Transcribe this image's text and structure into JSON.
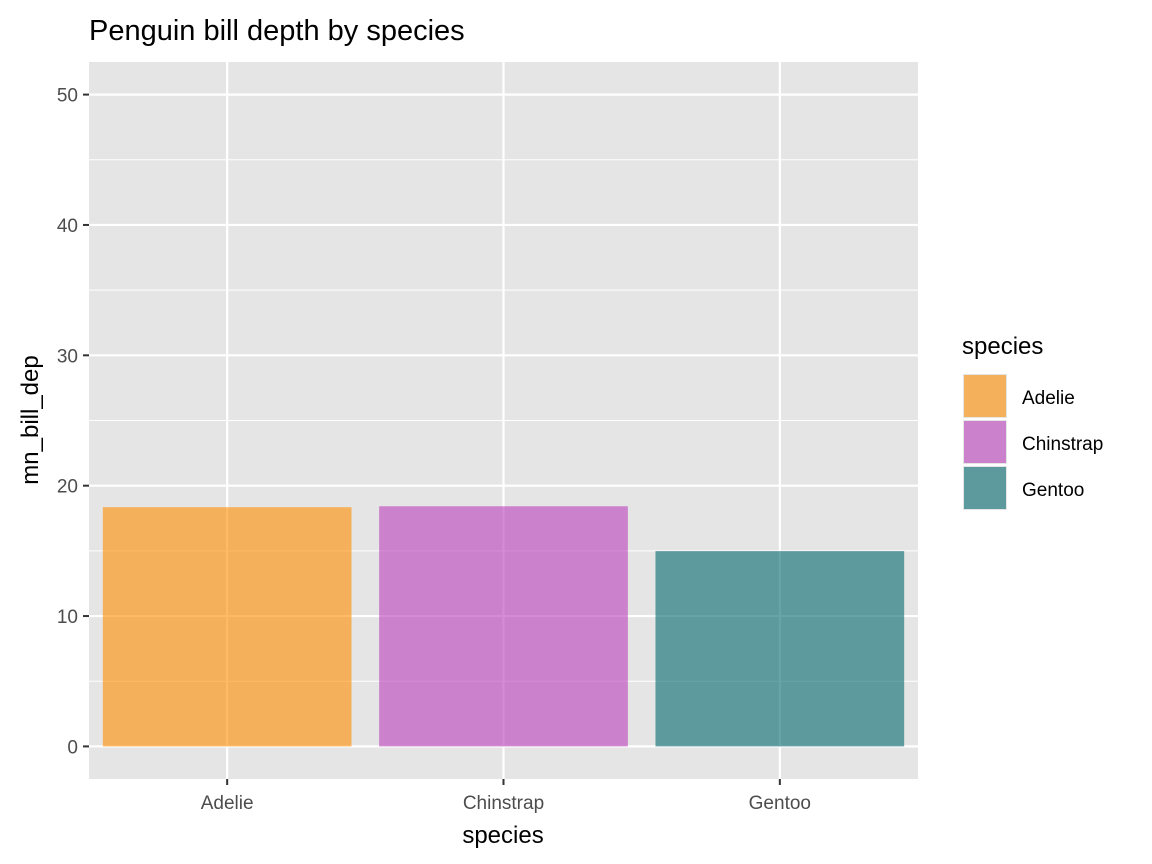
{
  "chart_data": {
    "type": "bar",
    "title": "Penguin bill depth by species",
    "xlabel": "species",
    "ylabel": "mn_bill_dep",
    "categories": [
      "Adelie",
      "Chinstrap",
      "Gentoo"
    ],
    "values": [
      18.35,
      18.42,
      14.98
    ],
    "colors": [
      "#FF8C00",
      "#BB3DBB",
      "#00686E"
    ],
    "alpha": 0.6,
    "ylim": [
      -2.5,
      52.5
    ],
    "yticks": [
      0,
      10,
      20,
      30,
      40,
      50
    ],
    "ytick_labels": [
      "0",
      "10",
      "20",
      "30",
      "40",
      "50"
    ],
    "grid": true,
    "panel_background": "#E5E5E5",
    "legend": {
      "title": "species",
      "entries": [
        "Adelie",
        "Chinstrap",
        "Gentoo"
      ],
      "placement": "right"
    }
  }
}
